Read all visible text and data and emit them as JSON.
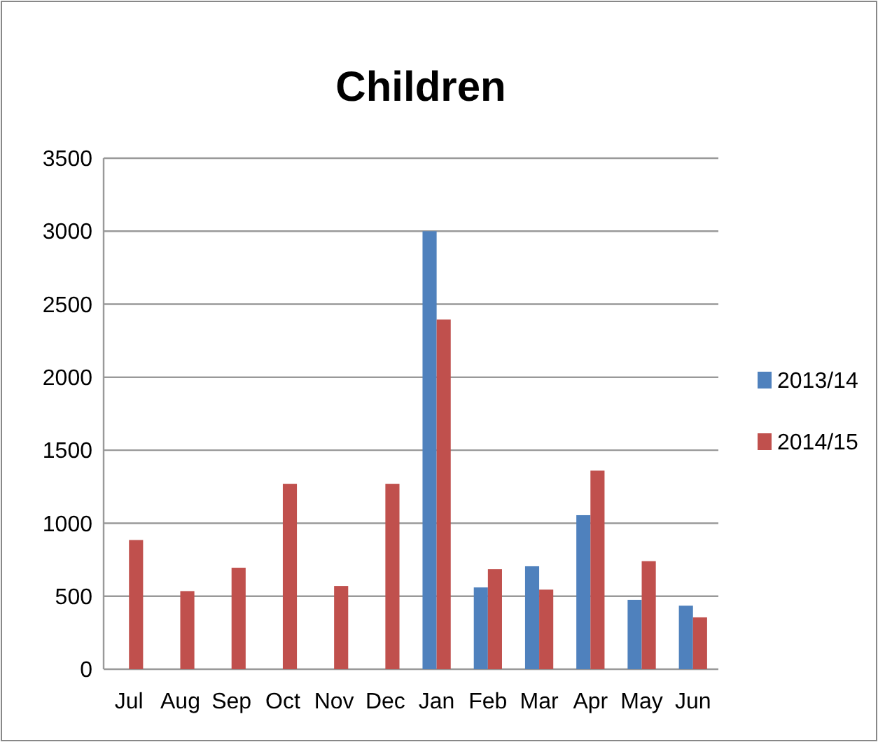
{
  "chart_data": {
    "type": "bar",
    "title": "Children",
    "categories": [
      "Jul",
      "Aug",
      "Sep",
      "Oct",
      "Nov",
      "Dec",
      "Jan",
      "Feb",
      "Mar",
      "Apr",
      "May",
      "Jun"
    ],
    "series": [
      {
        "name": "2013/14",
        "color": "#4f81bd",
        "values": [
          null,
          null,
          null,
          null,
          null,
          null,
          3000,
          560,
          705,
          1055,
          475,
          435
        ]
      },
      {
        "name": "2014/15",
        "color": "#c0504d",
        "values": [
          885,
          535,
          695,
          1270,
          570,
          1270,
          2395,
          685,
          545,
          1360,
          740,
          355
        ]
      }
    ],
    "ylim": [
      0,
      3500
    ],
    "yticks": [
      0,
      500,
      1000,
      1500,
      2000,
      2500,
      3000,
      3500
    ],
    "grid": "y",
    "legend": "right"
  }
}
